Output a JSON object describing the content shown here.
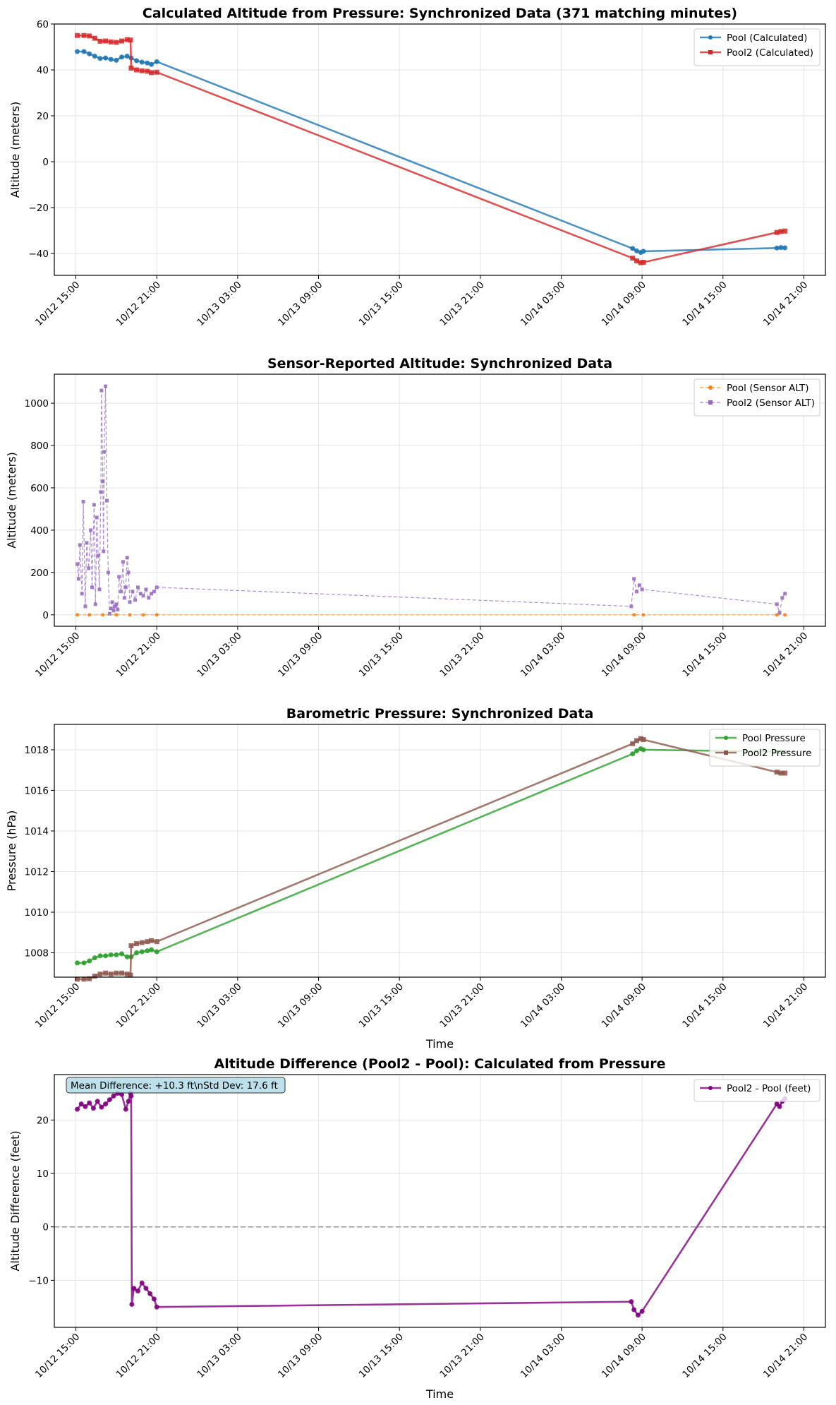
{
  "chart_data": [
    {
      "type": "line",
      "title": "Calculated Altitude from Pressure: Synchronized Data (371 matching minutes)",
      "xlabel": "",
      "ylabel": "Altitude (meters)",
      "x_unit": "hours since 10/12 15:00",
      "xlim": [
        -1.6,
        55.6
      ],
      "ylim": [
        -49.5,
        60
      ],
      "yticks": [
        -40,
        -20,
        0,
        20,
        40,
        60
      ],
      "ytick_labels": [
        "−40",
        "−20",
        "0",
        "20",
        "40",
        "60"
      ],
      "xticks": [
        0,
        6,
        12,
        18,
        24,
        30,
        36,
        42,
        48,
        54
      ],
      "xtick_labels": [
        "10/12 15:00",
        "10/12 21:00",
        "10/13 03:00",
        "10/13 09:00",
        "10/13 15:00",
        "10/13 21:00",
        "10/14 03:00",
        "10/14 09:00",
        "10/14 15:00",
        "10/14 21:00"
      ],
      "grid": true,
      "legend": "top-right",
      "series": [
        {
          "name": "Pool (Calculated)",
          "color": "#1f77b4",
          "marker": "circle",
          "style": "solid",
          "x": [
            0.1,
            0.6,
            1.0,
            1.4,
            1.8,
            2.2,
            2.6,
            3.0,
            3.4,
            3.8,
            4.1,
            4.5,
            4.9,
            5.3,
            5.6,
            6.0,
            41.3,
            41.6,
            41.9,
            42.1,
            52.0,
            52.3,
            52.6
          ],
          "y": [
            48.0,
            48.0,
            47.0,
            46.0,
            45.0,
            45.2,
            44.6,
            44.2,
            45.6,
            46.0,
            45.2,
            44.0,
            43.4,
            43.0,
            42.4,
            43.6,
            -37.8,
            -38.8,
            -39.5,
            -39.0,
            -37.6,
            -37.4,
            -37.5
          ]
        },
        {
          "name": "Pool2 (Calculated)",
          "color": "#d62728",
          "marker": "square",
          "style": "solid",
          "x": [
            0.1,
            0.6,
            1.0,
            1.4,
            1.8,
            2.2,
            2.6,
            3.0,
            3.4,
            3.8,
            4.05,
            4.1,
            4.5,
            4.9,
            5.3,
            5.6,
            6.0,
            41.3,
            41.6,
            41.9,
            42.1,
            52.0,
            52.3,
            52.6
          ],
          "y": [
            55.0,
            55.0,
            54.8,
            53.8,
            52.5,
            52.6,
            52.2,
            52.0,
            52.6,
            53.2,
            53.0,
            40.8,
            40.0,
            39.6,
            39.4,
            38.8,
            39.0,
            -42.0,
            -43.2,
            -44.0,
            -43.8,
            -30.8,
            -30.4,
            -30.2
          ]
        }
      ]
    },
    {
      "type": "line",
      "title": "Sensor-Reported Altitude: Synchronized Data",
      "xlabel": "",
      "ylabel": "Altitude (meters)",
      "x_unit": "hours since 10/12 15:00",
      "xlim": [
        -1.6,
        55.6
      ],
      "ylim": [
        -54,
        1137
      ],
      "yticks": [
        0,
        200,
        400,
        600,
        800,
        1000
      ],
      "ytick_labels": [
        "0",
        "200",
        "400",
        "600",
        "800",
        "1000"
      ],
      "xticks": [
        0,
        6,
        12,
        18,
        24,
        30,
        36,
        42,
        48,
        54
      ],
      "xtick_labels": [
        "10/12 15:00",
        "10/12 21:00",
        "10/13 03:00",
        "10/13 09:00",
        "10/13 15:00",
        "10/13 21:00",
        "10/14 03:00",
        "10/14 09:00",
        "10/14 15:00",
        "10/14 21:00"
      ],
      "grid": true,
      "legend": "top-right",
      "series": [
        {
          "name": "Pool (Sensor ALT)",
          "color": "#ff7f0e",
          "marker": "circle",
          "style": "dashed",
          "x": [
            0.1,
            1.0,
            2.0,
            3.0,
            4.0,
            5.0,
            6.0,
            41.4,
            42.1,
            52.0,
            52.6
          ],
          "y": [
            0,
            0,
            0,
            0,
            0,
            0,
            0,
            0,
            0,
            0,
            0
          ]
        },
        {
          "name": "Pool2 (Sensor ALT)",
          "color": "#9467bd",
          "marker": "square",
          "style": "dashed",
          "x": [
            0.1,
            0.2,
            0.3,
            0.45,
            0.55,
            0.7,
            0.8,
            0.95,
            1.1,
            1.2,
            1.35,
            1.45,
            1.55,
            1.65,
            1.75,
            1.85,
            1.9,
            2.0,
            2.05,
            2.1,
            2.2,
            2.3,
            2.4,
            2.5,
            2.6,
            2.7,
            2.8,
            2.9,
            3.0,
            3.1,
            3.2,
            3.35,
            3.5,
            3.6,
            3.7,
            3.8,
            3.9,
            4.0,
            4.2,
            4.4,
            4.6,
            4.8,
            5.0,
            5.2,
            5.4,
            5.6,
            5.8,
            6.0,
            41.2,
            41.4,
            41.6,
            41.8,
            42.0,
            52.0,
            52.2,
            52.4,
            52.6
          ],
          "y": [
            240,
            170,
            330,
            100,
            535,
            40,
            340,
            220,
            400,
            130,
            520,
            50,
            460,
            280,
            120,
            580,
            1060,
            630,
            300,
            770,
            1080,
            540,
            200,
            5,
            30,
            60,
            20,
            40,
            50,
            25,
            180,
            110,
            250,
            80,
            130,
            270,
            200,
            60,
            110,
            70,
            130,
            100,
            90,
            120,
            80,
            100,
            110,
            130,
            40,
            170,
            110,
            140,
            120,
            50,
            10,
            80,
            100
          ]
        }
      ]
    },
    {
      "type": "line",
      "title": "Barometric Pressure: Synchronized Data",
      "xlabel": "Time",
      "ylabel": "Pressure (hPa)",
      "x_unit": "hours since 10/12 15:00",
      "xlim": [
        -1.6,
        55.6
      ],
      "ylim": [
        1006.8,
        1019.25
      ],
      "yticks": [
        1008,
        1010,
        1012,
        1014,
        1016,
        1018
      ],
      "ytick_labels": [
        "1008",
        "1010",
        "1012",
        "1014",
        "1016",
        "1018"
      ],
      "xticks": [
        0,
        6,
        12,
        18,
        24,
        30,
        36,
        42,
        48,
        54
      ],
      "xtick_labels": [
        "10/12 15:00",
        "10/12 21:00",
        "10/13 03:00",
        "10/13 09:00",
        "10/13 15:00",
        "10/13 21:00",
        "10/14 03:00",
        "10/14 09:00",
        "10/14 15:00",
        "10/14 21:00"
      ],
      "grid": true,
      "legend": "top-right",
      "series": [
        {
          "name": "Pool Pressure",
          "color": "#2ca02c",
          "marker": "circle",
          "style": "solid",
          "x": [
            0.1,
            0.6,
            1.0,
            1.4,
            1.8,
            2.2,
            2.6,
            3.0,
            3.4,
            3.8,
            4.1,
            4.5,
            4.9,
            5.3,
            5.6,
            6.0,
            41.3,
            41.6,
            41.9,
            42.1,
            52.0,
            52.3,
            52.6
          ],
          "y": [
            1007.5,
            1007.5,
            1007.6,
            1007.75,
            1007.85,
            1007.85,
            1007.9,
            1007.9,
            1007.95,
            1007.8,
            1007.8,
            1008.0,
            1008.05,
            1008.1,
            1008.15,
            1008.05,
            1017.8,
            1017.95,
            1018.05,
            1018.0,
            1017.9,
            1017.9,
            1017.9
          ]
        },
        {
          "name": "Pool2 Pressure",
          "color": "#8c564b",
          "marker": "square",
          "style": "solid",
          "x": [
            0.1,
            0.6,
            1.0,
            1.4,
            1.8,
            2.2,
            2.6,
            3.0,
            3.4,
            3.8,
            4.05,
            4.1,
            4.5,
            4.9,
            5.3,
            5.6,
            6.0,
            41.3,
            41.6,
            41.9,
            42.1,
            52.0,
            52.3,
            52.6
          ],
          "y": [
            1006.7,
            1006.7,
            1006.72,
            1006.85,
            1006.95,
            1007.0,
            1006.95,
            1007.0,
            1007.0,
            1006.95,
            1006.9,
            1008.35,
            1008.45,
            1008.5,
            1008.55,
            1008.6,
            1008.55,
            1018.3,
            1018.45,
            1018.55,
            1018.5,
            1016.9,
            1016.85,
            1016.85
          ]
        }
      ]
    },
    {
      "type": "line",
      "title": "Altitude Difference (Pool2 - Pool): Calculated from Pressure",
      "xlabel": "Time",
      "ylabel": "Altitude Difference (feet)",
      "x_unit": "hours since 10/12 15:00",
      "xlim": [
        -1.6,
        55.6
      ],
      "ylim": [
        -18.8,
        28.5
      ],
      "yticks": [
        -10,
        0,
        10,
        20
      ],
      "ytick_labels": [
        "−10",
        "0",
        "10",
        "20"
      ],
      "xticks": [
        0,
        6,
        12,
        18,
        24,
        30,
        36,
        42,
        48,
        54
      ],
      "xtick_labels": [
        "10/12 15:00",
        "10/12 21:00",
        "10/13 03:00",
        "10/13 09:00",
        "10/13 15:00",
        "10/13 21:00",
        "10/14 03:00",
        "10/14 09:00",
        "10/14 15:00",
        "10/14 21:00"
      ],
      "grid": true,
      "legend": "top-right",
      "reference_line": {
        "y": 0,
        "color": "#999999",
        "style": "dashed"
      },
      "annotation": "Mean Difference: +10.3 ft\\nStd Dev: 17.6 ft",
      "series": [
        {
          "name": "Pool2 - Pool (feet)",
          "color": "#800080",
          "marker": "circle",
          "style": "solid",
          "x": [
            0.1,
            0.4,
            0.7,
            1.0,
            1.3,
            1.6,
            1.9,
            2.2,
            2.5,
            2.8,
            3.1,
            3.4,
            3.7,
            3.9,
            4.05,
            4.1,
            4.15,
            4.3,
            4.6,
            4.9,
            5.2,
            5.5,
            5.8,
            6.0,
            41.2,
            41.4,
            41.7,
            42.0,
            52.0,
            52.2,
            52.4,
            52.6
          ],
          "y": [
            22.0,
            23.0,
            22.5,
            23.2,
            22.2,
            23.5,
            22.4,
            23.0,
            23.8,
            24.5,
            25.0,
            24.8,
            22.0,
            23.5,
            25.0,
            24.5,
            -14.5,
            -11.5,
            -12.0,
            -10.5,
            -11.5,
            -12.5,
            -13.5,
            -15.0,
            -14.0,
            -15.5,
            -16.5,
            -15.8,
            23.0,
            22.5,
            23.5,
            24.0
          ]
        }
      ]
    }
  ]
}
